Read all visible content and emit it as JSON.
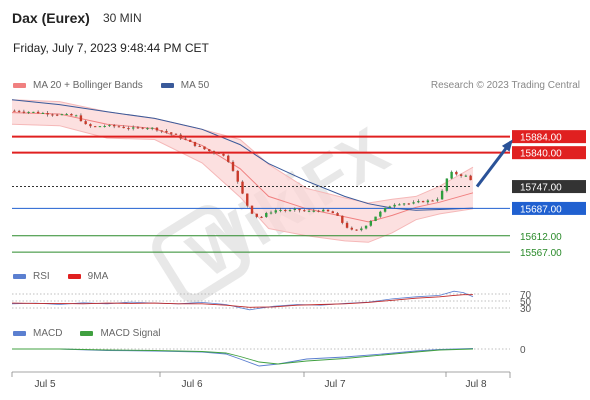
{
  "header": {
    "instrument": "Dax (Eurex)",
    "interval": "30 MIN",
    "datetime": "Friday, July 7, 2023 9:48:44 PM CET"
  },
  "legend_main": [
    {
      "label": "MA 20 + Bollinger Bands",
      "color": "#f08080"
    },
    {
      "label": "MA 50",
      "color": "#3a5a9a"
    }
  ],
  "credit": "Research © 2023 Trading Central",
  "legend_rsi": [
    {
      "label": "RSI",
      "color": "#5b7fd0"
    },
    {
      "label": "9MA",
      "color": "#e02020"
    }
  ],
  "legend_macd": [
    {
      "label": "MACD",
      "color": "#5b7fd0"
    },
    {
      "label": "MACD Signal",
      "color": "#40a040"
    }
  ],
  "watermark": "WikiFX",
  "chart_data": {
    "type": "candlestick",
    "x_ticks": [
      "Jul 5",
      "Jul 6",
      "Jul 7",
      "Jul 8"
    ],
    "ylim": [
      15540,
      15990
    ],
    "price_levels": [
      {
        "label": "15884.00",
        "value": 15884,
        "kind": "resistance",
        "color": "#e02020"
      },
      {
        "label": "15840.00",
        "value": 15840,
        "kind": "resistance",
        "color": "#e02020"
      },
      {
        "label": "15747.00",
        "value": 15747,
        "kind": "last",
        "color": "#333333"
      },
      {
        "label": "15687.00",
        "value": 15687,
        "kind": "pivot",
        "color": "#2060d0"
      },
      {
        "label": "15612.00",
        "value": 15612,
        "kind": "support",
        "color": "#2a8a2a"
      },
      {
        "label": "15567.00",
        "value": 15567,
        "kind": "support",
        "color": "#2a8a2a"
      }
    ],
    "close_path": [
      [
        0,
        15955
      ],
      [
        6,
        15953
      ],
      [
        12,
        15949
      ],
      [
        18,
        15946
      ],
      [
        22,
        15944
      ],
      [
        28,
        15940
      ],
      [
        30,
        15918
      ],
      [
        34,
        15910
      ],
      [
        38,
        15914
      ],
      [
        44,
        15912
      ],
      [
        48,
        15908
      ],
      [
        52,
        15906
      ],
      [
        56,
        15910
      ],
      [
        60,
        15906
      ],
      [
        64,
        15898
      ],
      [
        68,
        15890
      ],
      [
        72,
        15878
      ],
      [
        76,
        15864
      ],
      [
        80,
        15852
      ],
      [
        84,
        15842
      ],
      [
        88,
        15838
      ],
      [
        92,
        15810
      ],
      [
        96,
        15742
      ],
      [
        100,
        15680
      ],
      [
        104,
        15660
      ],
      [
        108,
        15676
      ],
      [
        112,
        15684
      ],
      [
        116,
        15680
      ],
      [
        120,
        15684
      ],
      [
        124,
        15678
      ],
      [
        128,
        15682
      ],
      [
        132,
        15680
      ],
      [
        136,
        15672
      ],
      [
        140,
        15640
      ],
      [
        144,
        15622
      ],
      [
        148,
        15636
      ],
      [
        152,
        15660
      ],
      [
        156,
        15682
      ],
      [
        160,
        15698
      ],
      [
        164,
        15702
      ],
      [
        168,
        15700
      ],
      [
        172,
        15706
      ],
      [
        176,
        15708
      ],
      [
        180,
        15716
      ],
      [
        184,
        15786
      ],
      [
        188,
        15780
      ],
      [
        192,
        15774
      ],
      [
        194,
        15754
      ]
    ],
    "projection": {
      "from": [
        194,
        15747
      ],
      "to": [
        210,
        15870
      ]
    },
    "ma20": [
      [
        0,
        15950
      ],
      [
        20,
        15946
      ],
      [
        40,
        15918
      ],
      [
        60,
        15906
      ],
      [
        80,
        15860
      ],
      [
        96,
        15796
      ],
      [
        108,
        15720
      ],
      [
        124,
        15686
      ],
      [
        140,
        15664
      ],
      [
        150,
        15650
      ],
      [
        160,
        15668
      ],
      [
        170,
        15690
      ],
      [
        180,
        15704
      ],
      [
        194,
        15730
      ]
    ],
    "bollinger_upper": [
      [
        0,
        15985
      ],
      [
        20,
        15980
      ],
      [
        40,
        15952
      ],
      [
        60,
        15934
      ],
      [
        80,
        15904
      ],
      [
        96,
        15876
      ],
      [
        108,
        15808
      ],
      [
        124,
        15742
      ],
      [
        140,
        15716
      ],
      [
        150,
        15702
      ],
      [
        160,
        15712
      ],
      [
        170,
        15720
      ],
      [
        180,
        15748
      ],
      [
        194,
        15800
      ]
    ],
    "bollinger_lower": [
      [
        0,
        15918
      ],
      [
        20,
        15914
      ],
      [
        40,
        15880
      ],
      [
        60,
        15876
      ],
      [
        80,
        15812
      ],
      [
        96,
        15718
      ],
      [
        108,
        15632
      ],
      [
        124,
        15612
      ],
      [
        140,
        15598
      ],
      [
        150,
        15594
      ],
      [
        160,
        15620
      ],
      [
        170,
        15656
      ],
      [
        180,
        15672
      ],
      [
        194,
        15686
      ]
    ],
    "ma50": [
      [
        0,
        15985
      ],
      [
        20,
        15972
      ],
      [
        40,
        15952
      ],
      [
        60,
        15934
      ],
      [
        80,
        15904
      ],
      [
        96,
        15862
      ],
      [
        108,
        15810
      ],
      [
        124,
        15762
      ],
      [
        140,
        15720
      ],
      [
        150,
        15700
      ],
      [
        160,
        15688
      ],
      [
        170,
        15682
      ],
      [
        180,
        15684
      ],
      [
        194,
        15688
      ]
    ],
    "rsi": {
      "levels": [
        {
          "label": "70",
          "value": 70
        },
        {
          "label": "50",
          "value": 50
        },
        {
          "label": "30",
          "value": 30
        }
      ],
      "ylim": [
        0,
        100
      ],
      "rsi": [
        [
          0,
          42
        ],
        [
          10,
          44
        ],
        [
          20,
          40
        ],
        [
          30,
          45
        ],
        [
          40,
          42
        ],
        [
          50,
          47
        ],
        [
          60,
          44
        ],
        [
          70,
          42
        ],
        [
          80,
          46
        ],
        [
          90,
          40
        ],
        [
          100,
          25
        ],
        [
          110,
          35
        ],
        [
          120,
          40
        ],
        [
          130,
          38
        ],
        [
          140,
          43
        ],
        [
          150,
          47
        ],
        [
          160,
          56
        ],
        [
          170,
          62
        ],
        [
          180,
          66
        ],
        [
          186,
          78
        ],
        [
          190,
          74
        ],
        [
          194,
          62
        ]
      ],
      "ma9": [
        [
          0,
          44
        ],
        [
          10,
          43
        ],
        [
          20,
          43
        ],
        [
          30,
          42
        ],
        [
          40,
          44
        ],
        [
          50,
          43
        ],
        [
          60,
          44
        ],
        [
          70,
          42
        ],
        [
          80,
          42
        ],
        [
          90,
          38
        ],
        [
          100,
          32
        ],
        [
          110,
          33
        ],
        [
          120,
          38
        ],
        [
          130,
          40
        ],
        [
          140,
          42
        ],
        [
          150,
          46
        ],
        [
          160,
          52
        ],
        [
          170,
          58
        ],
        [
          180,
          62
        ],
        [
          186,
          66
        ],
        [
          190,
          68
        ],
        [
          194,
          68
        ]
      ]
    },
    "macd": {
      "zero_label": "0",
      "ylim": [
        -40,
        10
      ],
      "macd": [
        [
          0,
          0
        ],
        [
          20,
          0
        ],
        [
          40,
          -3
        ],
        [
          60,
          -4
        ],
        [
          80,
          -6
        ],
        [
          90,
          -10
        ],
        [
          96,
          -20
        ],
        [
          104,
          -34
        ],
        [
          112,
          -30
        ],
        [
          124,
          -20
        ],
        [
          140,
          -16
        ],
        [
          156,
          -10
        ],
        [
          170,
          -4
        ],
        [
          180,
          -1
        ],
        [
          194,
          1
        ]
      ],
      "signal": [
        [
          0,
          0
        ],
        [
          20,
          0
        ],
        [
          40,
          -2
        ],
        [
          60,
          -3
        ],
        [
          80,
          -5
        ],
        [
          90,
          -8
        ],
        [
          96,
          -15
        ],
        [
          104,
          -26
        ],
        [
          112,
          -30
        ],
        [
          124,
          -24
        ],
        [
          140,
          -19
        ],
        [
          156,
          -12
        ],
        [
          170,
          -6
        ],
        [
          180,
          -2
        ],
        [
          194,
          0
        ]
      ]
    }
  }
}
